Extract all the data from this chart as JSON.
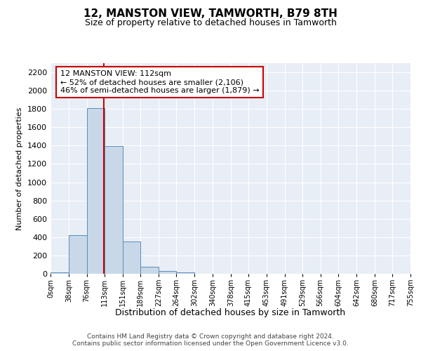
{
  "title": "12, MANSTON VIEW, TAMWORTH, B79 8TH",
  "subtitle": "Size of property relative to detached houses in Tamworth",
  "xlabel": "Distribution of detached houses by size in Tamworth",
  "ylabel": "Number of detached properties",
  "bin_edges": [
    0,
    38,
    76,
    113,
    151,
    189,
    227,
    264,
    302,
    340,
    378,
    415,
    453,
    491,
    529,
    566,
    604,
    642,
    680,
    717,
    755
  ],
  "bar_heights": [
    15,
    425,
    1810,
    1395,
    350,
    75,
    30,
    15,
    0,
    0,
    0,
    0,
    0,
    0,
    0,
    0,
    0,
    0,
    0,
    0
  ],
  "bar_color": "#c8d8e8",
  "bar_edgecolor": "#5b8db8",
  "property_sqm": 112,
  "property_line_color": "#cc0000",
  "annotation_text": "12 MANSTON VIEW: 112sqm\n← 52% of detached houses are smaller (2,106)\n46% of semi-detached houses are larger (1,879) →",
  "annotation_box_facecolor": "#ffffff",
  "annotation_box_edgecolor": "#cc0000",
  "ylim": [
    0,
    2300
  ],
  "yticks": [
    0,
    200,
    400,
    600,
    800,
    1000,
    1200,
    1400,
    1600,
    1800,
    2000,
    2200
  ],
  "background_color": "#e8eef5",
  "grid_color": "#ffffff",
  "footer_line1": "Contains HM Land Registry data © Crown copyright and database right 2024.",
  "footer_line2": "Contains public sector information licensed under the Open Government Licence v3.0.",
  "title_fontsize": 11,
  "subtitle_fontsize": 9,
  "ylabel_fontsize": 8,
  "xlabel_fontsize": 9,
  "ytick_fontsize": 8,
  "xtick_fontsize": 7,
  "annotation_fontsize": 8,
  "footer_fontsize": 6.5
}
